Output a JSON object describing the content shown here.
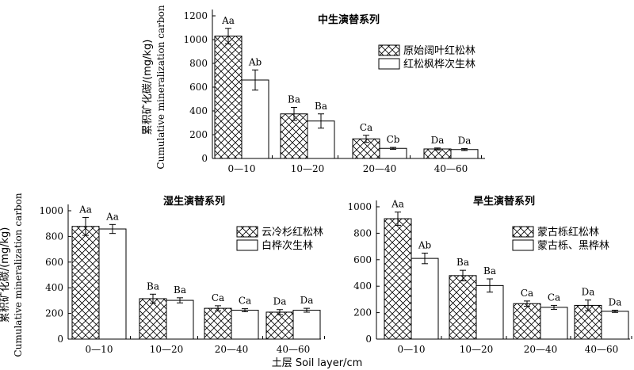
{
  "chart_data": [
    {
      "type": "bar",
      "title": "中生演替系列",
      "ylabel_cn": "累积矿化碳/(mg/kg)",
      "ylabel_en": "Cumulative mineralization carbon",
      "ylim": [
        0,
        1200
      ],
      "yticks": [
        "0",
        "200",
        "400",
        "600",
        "800",
        "1000",
        "1200"
      ],
      "categories": [
        "0—10",
        "10—20",
        "20—40",
        "40—60"
      ],
      "legend_position": "top-right",
      "series": [
        {
          "name": "原始阔叶红松林",
          "pattern": "crosshatch",
          "values": [
            1030,
            375,
            165,
            80
          ],
          "errors": [
            65,
            55,
            30,
            8
          ],
          "labels": [
            "Aa",
            "Ba",
            "Ca",
            "Da"
          ]
        },
        {
          "name": "红松枫桦次生林",
          "pattern": "white",
          "values": [
            660,
            315,
            85,
            75
          ],
          "errors": [
            85,
            60,
            8,
            8
          ],
          "labels": [
            "Ab",
            "Ba",
            "Cb",
            "Da"
          ]
        }
      ]
    },
    {
      "type": "bar",
      "title": "湿生演替系列",
      "ylabel_cn": "累积矿化碳/(mg/kg)",
      "ylabel_en": "Cumulative mineralization carbon",
      "ylim": [
        0,
        1000
      ],
      "yticks": [
        "0",
        "200",
        "400",
        "600",
        "800",
        "1000"
      ],
      "categories": [
        "0—10",
        "10—20",
        "20—40",
        "40—60"
      ],
      "legend_position": "top-right",
      "series": [
        {
          "name": "云冷杉红松林",
          "pattern": "crosshatch",
          "values": [
            878,
            315,
            240,
            210
          ],
          "errors": [
            70,
            35,
            20,
            20
          ],
          "labels": [
            "Aa",
            "Ba",
            "Ca",
            "Da"
          ]
        },
        {
          "name": "白桦次生林",
          "pattern": "white",
          "values": [
            858,
            302,
            225,
            225
          ],
          "errors": [
            35,
            20,
            12,
            15
          ],
          "labels": [
            "Aa",
            "Ba",
            "Ca",
            "Da"
          ]
        }
      ]
    },
    {
      "type": "bar",
      "title": "旱生演替系列",
      "ylim": [
        0,
        1000
      ],
      "yticks": [
        "0",
        "200",
        "400",
        "600",
        "800",
        "1000"
      ],
      "categories": [
        "0—10",
        "10—20",
        "20—40",
        "40—60"
      ],
      "legend_position": "top-right",
      "series": [
        {
          "name": "蒙古栎红松林",
          "pattern": "crosshatch",
          "values": [
            910,
            480,
            268,
            255
          ],
          "errors": [
            50,
            40,
            20,
            40
          ],
          "labels": [
            "Aa",
            "Ba",
            "Ca",
            "Da"
          ]
        },
        {
          "name": "蒙古栎、黑桦林",
          "pattern": "white",
          "values": [
            610,
            405,
            240,
            210
          ],
          "errors": [
            40,
            50,
            15,
            8
          ],
          "labels": [
            "Ab",
            "Ba",
            "Ca",
            "Da"
          ]
        }
      ]
    }
  ],
  "xlabel": "土层 Soil layer/cm"
}
